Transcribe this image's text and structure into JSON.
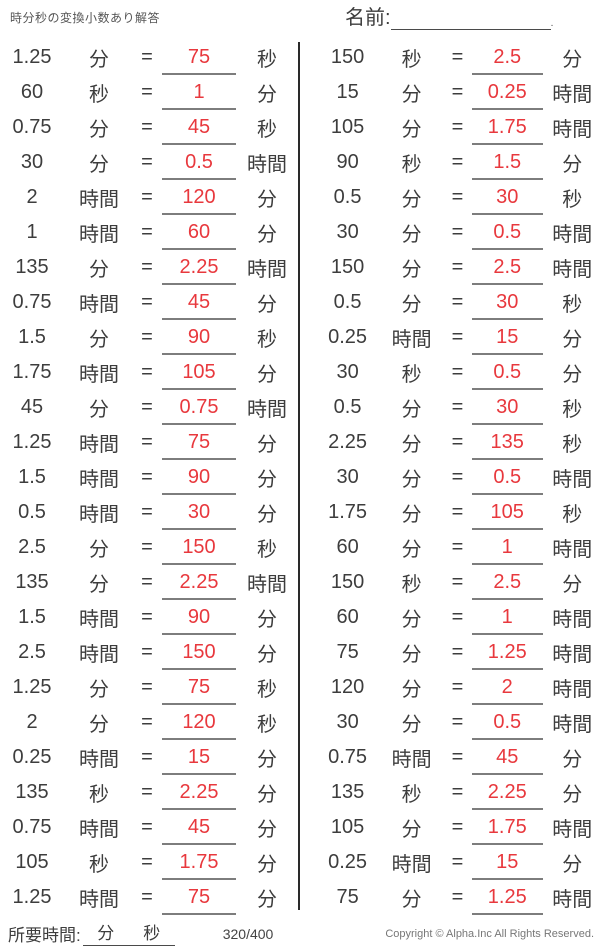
{
  "header": {
    "title": "時分秒の変換小数あり解答",
    "name_label": "名前:",
    "name_line_end": "."
  },
  "equals_sign": "=",
  "colors": {
    "answer_red": "#e8383d",
    "text": "#3d3d3d",
    "answer_underline": "#7d7d7d",
    "divider": "#2a2a2a"
  },
  "columns": {
    "left": {
      "rows": [
        {
          "value": "1.25",
          "unit_from": "分",
          "answer": "75",
          "unit_to": "秒"
        },
        {
          "value": "60",
          "unit_from": "秒",
          "answer": "1",
          "unit_to": "分"
        },
        {
          "value": "0.75",
          "unit_from": "分",
          "answer": "45",
          "unit_to": "秒"
        },
        {
          "value": "30",
          "unit_from": "分",
          "answer": "0.5",
          "unit_to": "時間"
        },
        {
          "value": "2",
          "unit_from": "時間",
          "answer": "120",
          "unit_to": "分"
        },
        {
          "value": "1",
          "unit_from": "時間",
          "answer": "60",
          "unit_to": "分"
        },
        {
          "value": "135",
          "unit_from": "分",
          "answer": "2.25",
          "unit_to": "時間"
        },
        {
          "value": "0.75",
          "unit_from": "時間",
          "answer": "45",
          "unit_to": "分"
        },
        {
          "value": "1.5",
          "unit_from": "分",
          "answer": "90",
          "unit_to": "秒"
        },
        {
          "value": "1.75",
          "unit_from": "時間",
          "answer": "105",
          "unit_to": "分"
        },
        {
          "value": "45",
          "unit_from": "分",
          "answer": "0.75",
          "unit_to": "時間"
        },
        {
          "value": "1.25",
          "unit_from": "時間",
          "answer": "75",
          "unit_to": "分"
        },
        {
          "value": "1.5",
          "unit_from": "時間",
          "answer": "90",
          "unit_to": "分"
        },
        {
          "value": "0.5",
          "unit_from": "時間",
          "answer": "30",
          "unit_to": "分"
        },
        {
          "value": "2.5",
          "unit_from": "分",
          "answer": "150",
          "unit_to": "秒"
        },
        {
          "value": "135",
          "unit_from": "分",
          "answer": "2.25",
          "unit_to": "時間"
        },
        {
          "value": "1.5",
          "unit_from": "時間",
          "answer": "90",
          "unit_to": "分"
        },
        {
          "value": "2.5",
          "unit_from": "時間",
          "answer": "150",
          "unit_to": "分"
        },
        {
          "value": "1.25",
          "unit_from": "分",
          "answer": "75",
          "unit_to": "秒"
        },
        {
          "value": "2",
          "unit_from": "分",
          "answer": "120",
          "unit_to": "秒"
        },
        {
          "value": "0.25",
          "unit_from": "時間",
          "answer": "15",
          "unit_to": "分"
        },
        {
          "value": "135",
          "unit_from": "秒",
          "answer": "2.25",
          "unit_to": "分"
        },
        {
          "value": "0.75",
          "unit_from": "時間",
          "answer": "45",
          "unit_to": "分"
        },
        {
          "value": "105",
          "unit_from": "秒",
          "answer": "1.75",
          "unit_to": "分"
        },
        {
          "value": "1.25",
          "unit_from": "時間",
          "answer": "75",
          "unit_to": "分"
        }
      ]
    },
    "right": {
      "rows": [
        {
          "value": "150",
          "unit_from": "秒",
          "answer": "2.5",
          "unit_to": "分"
        },
        {
          "value": "15",
          "unit_from": "分",
          "answer": "0.25",
          "unit_to": "時間"
        },
        {
          "value": "105",
          "unit_from": "分",
          "answer": "1.75",
          "unit_to": "時間"
        },
        {
          "value": "90",
          "unit_from": "秒",
          "answer": "1.5",
          "unit_to": "分"
        },
        {
          "value": "0.5",
          "unit_from": "分",
          "answer": "30",
          "unit_to": "秒"
        },
        {
          "value": "30",
          "unit_from": "分",
          "answer": "0.5",
          "unit_to": "時間"
        },
        {
          "value": "150",
          "unit_from": "分",
          "answer": "2.5",
          "unit_to": "時間"
        },
        {
          "value": "0.5",
          "unit_from": "分",
          "answer": "30",
          "unit_to": "秒"
        },
        {
          "value": "0.25",
          "unit_from": "時間",
          "answer": "15",
          "unit_to": "分"
        },
        {
          "value": "30",
          "unit_from": "秒",
          "answer": "0.5",
          "unit_to": "分"
        },
        {
          "value": "0.5",
          "unit_from": "分",
          "answer": "30",
          "unit_to": "秒"
        },
        {
          "value": "2.25",
          "unit_from": "分",
          "answer": "135",
          "unit_to": "秒"
        },
        {
          "value": "30",
          "unit_from": "分",
          "answer": "0.5",
          "unit_to": "時間"
        },
        {
          "value": "1.75",
          "unit_from": "分",
          "answer": "105",
          "unit_to": "秒"
        },
        {
          "value": "60",
          "unit_from": "分",
          "answer": "1",
          "unit_to": "時間"
        },
        {
          "value": "150",
          "unit_from": "秒",
          "answer": "2.5",
          "unit_to": "分"
        },
        {
          "value": "60",
          "unit_from": "分",
          "answer": "1",
          "unit_to": "時間"
        },
        {
          "value": "75",
          "unit_from": "分",
          "answer": "1.25",
          "unit_to": "時間"
        },
        {
          "value": "120",
          "unit_from": "分",
          "answer": "2",
          "unit_to": "時間"
        },
        {
          "value": "30",
          "unit_from": "分",
          "answer": "0.5",
          "unit_to": "時間"
        },
        {
          "value": "0.75",
          "unit_from": "時間",
          "answer": "45",
          "unit_to": "分"
        },
        {
          "value": "135",
          "unit_from": "秒",
          "answer": "2.25",
          "unit_to": "分"
        },
        {
          "value": "105",
          "unit_from": "分",
          "answer": "1.75",
          "unit_to": "時間"
        },
        {
          "value": "0.25",
          "unit_from": "時間",
          "answer": "15",
          "unit_to": "分"
        },
        {
          "value": "75",
          "unit_from": "分",
          "answer": "1.25",
          "unit_to": "時間"
        }
      ]
    }
  },
  "footer": {
    "time_label": "所要時間:",
    "minutes_unit": "分",
    "seconds_unit": "秒",
    "page_indicator": "320/400",
    "copyright": "Copyright © Alpha.Inc All Rights Reserved."
  }
}
